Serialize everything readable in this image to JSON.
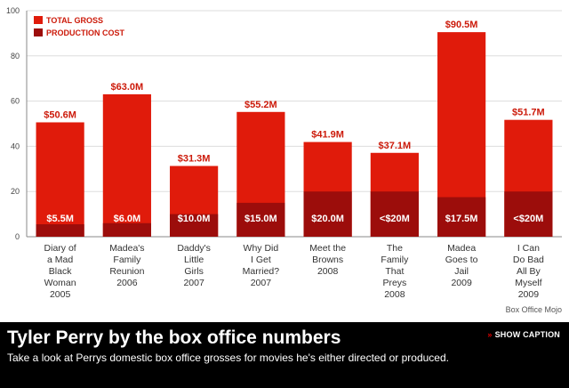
{
  "chart_data": {
    "type": "bar",
    "categories": [
      [
        "Diary of",
        "a Mad",
        "Black",
        "Woman",
        "2005"
      ],
      [
        "Madea's",
        "Family",
        "Reunion",
        "2006"
      ],
      [
        "Daddy's",
        "Little",
        "Girls",
        "2007"
      ],
      [
        "Why Did",
        "I Get",
        "Married?",
        "2007"
      ],
      [
        "Meet the",
        "Browns",
        "2008"
      ],
      [
        "The",
        "Family",
        "That",
        "Preys",
        "2008"
      ],
      [
        "Madea",
        "Goes to",
        "Jail",
        "2009"
      ],
      [
        "I Can",
        "Do Bad",
        "All By",
        "Myself",
        "2009"
      ]
    ],
    "series": [
      {
        "name": "TOTAL GROSS",
        "color": "#e01b0b",
        "values": [
          50.6,
          63.0,
          31.3,
          55.2,
          41.9,
          37.1,
          90.5,
          51.7
        ],
        "labels": [
          "$50.6M",
          "$63.0M",
          "$31.3M",
          "$55.2M",
          "$41.9M",
          "$37.1M",
          "$90.5M",
          "$51.7M"
        ]
      },
      {
        "name": "PRODUCTION COST",
        "color": "#9c0d0b",
        "values": [
          5.5,
          6.0,
          10.0,
          15.0,
          20.0,
          20.0,
          17.5,
          20.0
        ],
        "labels": [
          "$5.5M",
          "$6.0M",
          "$10.0M",
          "$15.0M",
          "$20.0M",
          "<$20M",
          "$17.5M",
          "<$20M"
        ]
      }
    ],
    "yticks": [
      0,
      20,
      40,
      60,
      80,
      100
    ],
    "ylim": [
      0,
      100
    ],
    "grid": true,
    "legend_position": "top-left"
  },
  "source": "Box Office Mojo",
  "caption": {
    "title": "Tyler Perry by the box office numbers",
    "text": "Take a look at Perrys domestic box office grosses for movies he's either directed or produced.",
    "button_label": "SHOW CAPTION"
  }
}
